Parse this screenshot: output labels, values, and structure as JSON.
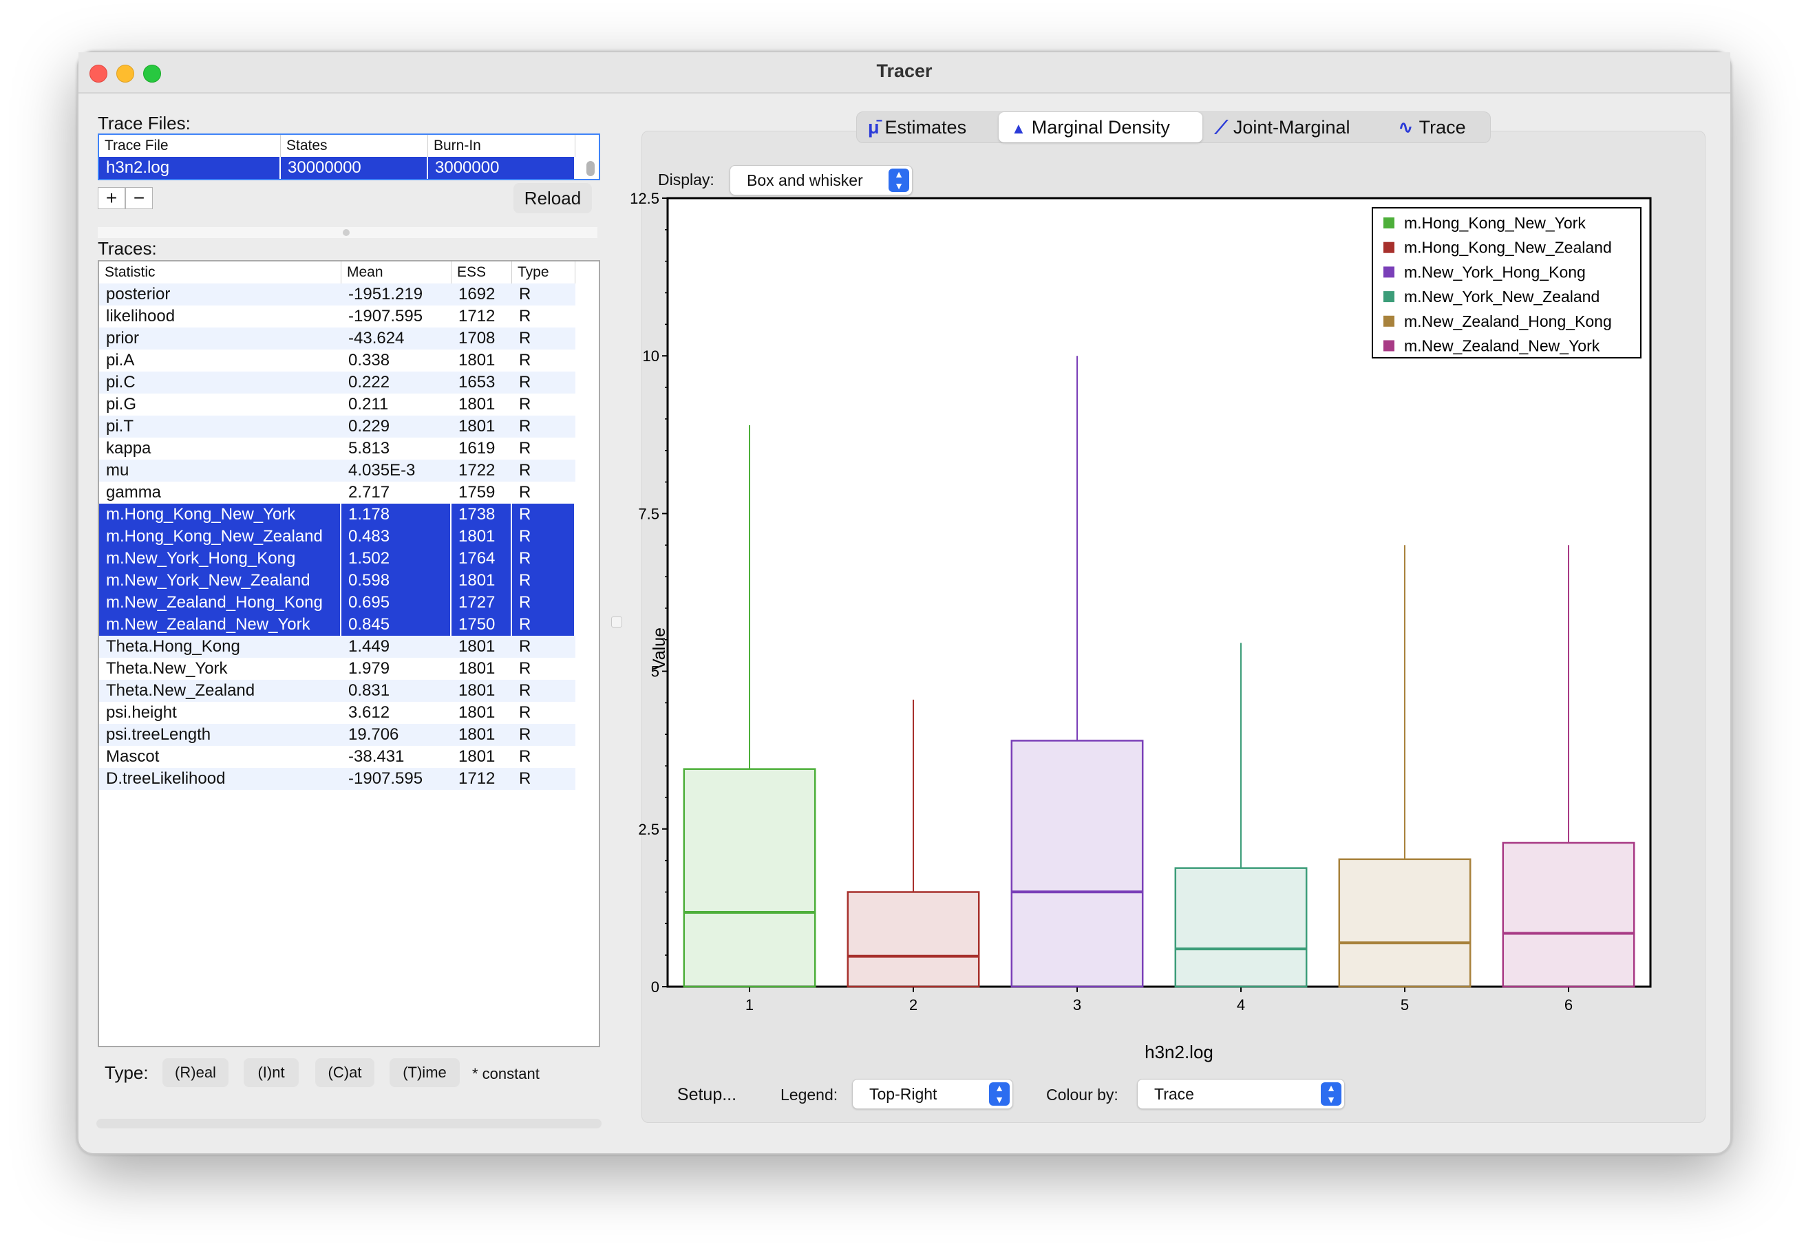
{
  "window": {
    "title": "Tracer"
  },
  "trace_files": {
    "label": "Trace Files:",
    "columns": [
      "Trace File",
      "States",
      "Burn-In"
    ],
    "rows": [
      {
        "file": "h3n2.log",
        "states": "30000000",
        "burnin": "3000000"
      }
    ],
    "add": "+",
    "remove": "−",
    "reload": "Reload"
  },
  "traces": {
    "label": "Traces:",
    "columns": [
      "Statistic",
      "Mean",
      "ESS",
      "Type"
    ],
    "rows": [
      {
        "stat": "posterior",
        "mean": "-1951.219",
        "ess": "1692",
        "type": "R",
        "selected": false
      },
      {
        "stat": "likelihood",
        "mean": "-1907.595",
        "ess": "1712",
        "type": "R",
        "selected": false
      },
      {
        "stat": "prior",
        "mean": "-43.624",
        "ess": "1708",
        "type": "R",
        "selected": false
      },
      {
        "stat": "pi.A",
        "mean": "0.338",
        "ess": "1801",
        "type": "R",
        "selected": false
      },
      {
        "stat": "pi.C",
        "mean": "0.222",
        "ess": "1653",
        "type": "R",
        "selected": false
      },
      {
        "stat": "pi.G",
        "mean": "0.211",
        "ess": "1801",
        "type": "R",
        "selected": false
      },
      {
        "stat": "pi.T",
        "mean": "0.229",
        "ess": "1801",
        "type": "R",
        "selected": false
      },
      {
        "stat": "kappa",
        "mean": "5.813",
        "ess": "1619",
        "type": "R",
        "selected": false
      },
      {
        "stat": "mu",
        "mean": "4.035E-3",
        "ess": "1722",
        "type": "R",
        "selected": false
      },
      {
        "stat": "gamma",
        "mean": "2.717",
        "ess": "1759",
        "type": "R",
        "selected": false
      },
      {
        "stat": "m.Hong_Kong_New_York",
        "mean": "1.178",
        "ess": "1738",
        "type": "R",
        "selected": true
      },
      {
        "stat": "m.Hong_Kong_New_Zealand",
        "mean": "0.483",
        "ess": "1801",
        "type": "R",
        "selected": true
      },
      {
        "stat": "m.New_York_Hong_Kong",
        "mean": "1.502",
        "ess": "1764",
        "type": "R",
        "selected": true
      },
      {
        "stat": "m.New_York_New_Zealand",
        "mean": "0.598",
        "ess": "1801",
        "type": "R",
        "selected": true
      },
      {
        "stat": "m.New_Zealand_Hong_Kong",
        "mean": "0.695",
        "ess": "1727",
        "type": "R",
        "selected": true
      },
      {
        "stat": "m.New_Zealand_New_York",
        "mean": "0.845",
        "ess": "1750",
        "type": "R",
        "selected": true
      },
      {
        "stat": "Theta.Hong_Kong",
        "mean": "1.449",
        "ess": "1801",
        "type": "R",
        "selected": false
      },
      {
        "stat": "Theta.New_York",
        "mean": "1.979",
        "ess": "1801",
        "type": "R",
        "selected": false
      },
      {
        "stat": "Theta.New_Zealand",
        "mean": "0.831",
        "ess": "1801",
        "type": "R",
        "selected": false
      },
      {
        "stat": "psi.height",
        "mean": "3.612",
        "ess": "1801",
        "type": "R",
        "selected": false
      },
      {
        "stat": "psi.treeLength",
        "mean": "19.706",
        "ess": "1801",
        "type": "R",
        "selected": false
      },
      {
        "stat": "Mascot",
        "mean": "-38.431",
        "ess": "1801",
        "type": "R",
        "selected": false
      },
      {
        "stat": "D.treeLikelihood",
        "mean": "-1907.595",
        "ess": "1712",
        "type": "R",
        "selected": false
      }
    ]
  },
  "type_bar": {
    "label": "Type:",
    "buttons": [
      "(R)eal",
      "(I)nt",
      "(C)at",
      "(T)ime"
    ],
    "note": "* constant"
  },
  "tabs": [
    {
      "label": "Estimates",
      "icon": "mu-icon",
      "active": false
    },
    {
      "label": "Marginal Density",
      "icon": "density-icon",
      "active": true
    },
    {
      "label": "Joint-Marginal",
      "icon": "joint-icon",
      "active": false
    },
    {
      "label": "Trace",
      "icon": "trace-icon",
      "active": false
    }
  ],
  "display": {
    "label": "Display:",
    "value": "Box and whisker"
  },
  "bottom": {
    "setup": "Setup...",
    "legend_label": "Legend:",
    "legend_value": "Top-Right",
    "colour_label": "Colour by:",
    "colour_value": "Trace"
  },
  "chart_data": {
    "type": "box",
    "xlabel": "h3n2.log",
    "ylabel": "Value",
    "ylim": [
      0,
      12.5
    ],
    "yticks": [
      "0",
      "2.5",
      "5",
      "7.5",
      "10",
      "12.5"
    ],
    "categories": [
      "1",
      "2",
      "3",
      "4",
      "5",
      "6"
    ],
    "legend_position": "top-right",
    "series": [
      {
        "name": "m.Hong_Kong_New_York",
        "color": "#4daf3a",
        "min": 0,
        "q1": 0,
        "median": 1.178,
        "q3": 3.45,
        "max": 8.9
      },
      {
        "name": "m.Hong_Kong_New_Zealand",
        "color": "#a7302c",
        "min": 0,
        "q1": 0,
        "median": 0.483,
        "q3": 1.5,
        "max": 4.55
      },
      {
        "name": "m.New_York_Hong_Kong",
        "color": "#7a3fb8",
        "min": 0,
        "q1": 0,
        "median": 1.502,
        "q3": 3.9,
        "max": 10.0
      },
      {
        "name": "m.New_York_New_Zealand",
        "color": "#3c9d79",
        "min": 0,
        "q1": 0,
        "median": 0.598,
        "q3": 1.88,
        "max": 5.45
      },
      {
        "name": "m.New_Zealand_Hong_Kong",
        "color": "#a8823c",
        "min": 0,
        "q1": 0,
        "median": 0.695,
        "q3": 2.02,
        "max": 7.0
      },
      {
        "name": "m.New_Zealand_New_York",
        "color": "#a83a85",
        "min": 0,
        "q1": 0,
        "median": 0.845,
        "q3": 2.28,
        "max": 7.0
      }
    ]
  }
}
